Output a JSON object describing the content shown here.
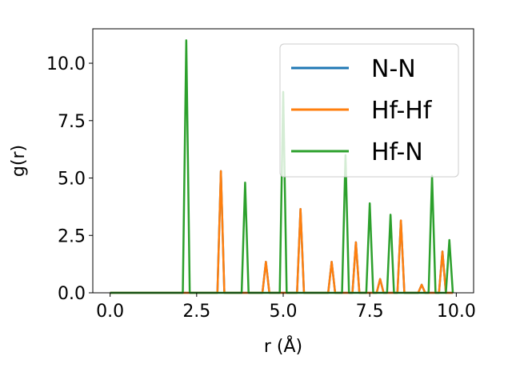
{
  "chart_data": {
    "type": "line",
    "xlabel": "r (Å)",
    "ylabel": "g(r)",
    "xlim": [
      -0.5,
      10.5
    ],
    "ylim": [
      0,
      11.5
    ],
    "xticks": [
      0.0,
      2.5,
      5.0,
      7.5,
      10.0
    ],
    "xtick_labels": [
      "0.0",
      "2.5",
      "5.0",
      "7.5",
      "10.0"
    ],
    "yticks": [
      0.0,
      2.5,
      5.0,
      7.5,
      10.0
    ],
    "ytick_labels": [
      "0.0",
      "2.5",
      "5.0",
      "7.5",
      "10.0"
    ],
    "grid": false,
    "legend_position": "top-right",
    "series": [
      {
        "name": "N-N",
        "color": "#1f77b4",
        "x": [
          0.0,
          2.1,
          2.2,
          2.3,
          3.1,
          3.2,
          3.3,
          4.4,
          4.5,
          4.6,
          5.4,
          5.5,
          5.6,
          6.3,
          6.4,
          6.5,
          7.0,
          7.1,
          7.2,
          7.7,
          7.8,
          7.9,
          8.3,
          8.4,
          8.5,
          8.9,
          9.0,
          9.1,
          9.5,
          9.6,
          9.7,
          9.9
        ],
        "y": [
          0,
          0,
          0,
          0,
          0,
          5.3,
          0,
          0,
          1.35,
          0,
          0,
          3.65,
          0,
          0,
          1.35,
          0,
          0,
          2.2,
          0,
          0,
          0.6,
          0,
          0,
          3.15,
          0,
          0,
          0.35,
          0,
          0,
          1.8,
          0,
          0
        ]
      },
      {
        "name": "Hf-Hf",
        "color": "#ff7f0e",
        "x": [
          0.0,
          3.1,
          3.2,
          3.3,
          4.4,
          4.5,
          4.6,
          5.4,
          5.5,
          5.6,
          6.3,
          6.4,
          6.5,
          7.0,
          7.1,
          7.2,
          7.7,
          7.8,
          7.9,
          8.3,
          8.4,
          8.5,
          8.9,
          9.0,
          9.1,
          9.5,
          9.6,
          9.7,
          9.9
        ],
        "y": [
          0,
          0,
          5.3,
          0,
          0,
          1.35,
          0,
          0,
          3.65,
          0,
          0,
          1.35,
          0,
          0,
          2.2,
          0,
          0,
          0.6,
          0,
          0,
          3.15,
          0,
          0,
          0.35,
          0,
          0,
          1.8,
          0,
          0
        ]
      },
      {
        "name": "Hf-N",
        "color": "#2ca02c",
        "x": [
          0.0,
          2.1,
          2.2,
          2.3,
          3.8,
          3.9,
          4.0,
          4.9,
          5.0,
          5.1,
          6.7,
          6.8,
          6.9,
          7.4,
          7.5,
          7.6,
          8.0,
          8.1,
          8.2,
          9.2,
          9.3,
          9.4,
          9.7,
          9.8,
          9.9
        ],
        "y": [
          0,
          0,
          11.0,
          0,
          0,
          4.8,
          0,
          0,
          8.75,
          0,
          0,
          6.0,
          0,
          0,
          3.9,
          0,
          0,
          3.4,
          0,
          0,
          5.1,
          0,
          0,
          2.3,
          0
        ]
      }
    ]
  }
}
